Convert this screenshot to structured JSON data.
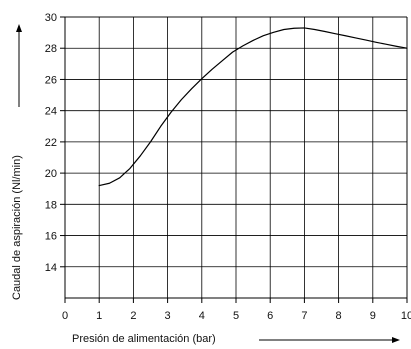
{
  "chart_data": {
    "type": "line",
    "title": "",
    "xlabel": "Presión de alimentación (bar)",
    "ylabel": "Caudal de aspiración (Nl/min)",
    "xlim": [
      0,
      10
    ],
    "ylim": [
      12,
      30
    ],
    "x_ticks": [
      "0",
      "1",
      "2",
      "3",
      "4",
      "5",
      "6",
      "7",
      "8",
      "9",
      "10"
    ],
    "y_ticks": [
      "14",
      "16",
      "18",
      "20",
      "22",
      "24",
      "26",
      "28",
      "30"
    ],
    "grid": true,
    "series": [
      {
        "x": [
          1.0,
          1.3,
          1.6,
          1.9,
          2.2,
          2.5,
          2.8,
          3.1,
          3.4,
          3.7,
          4.0,
          4.3,
          4.6,
          4.9,
          5.2,
          5.5,
          5.8,
          6.1,
          6.4,
          6.7,
          7.0,
          7.3,
          7.6,
          7.9,
          8.2,
          8.5,
          8.8,
          9.1,
          9.4,
          9.7,
          10.0
        ],
        "y": [
          19.2,
          19.35,
          19.7,
          20.3,
          21.1,
          22.0,
          23.0,
          23.9,
          24.7,
          25.4,
          26.05,
          26.65,
          27.2,
          27.75,
          28.15,
          28.5,
          28.8,
          29.02,
          29.2,
          29.28,
          29.3,
          29.2,
          29.07,
          28.93,
          28.8,
          28.66,
          28.52,
          28.38,
          28.25,
          28.12,
          28.0
        ]
      }
    ],
    "color": "#000000"
  }
}
